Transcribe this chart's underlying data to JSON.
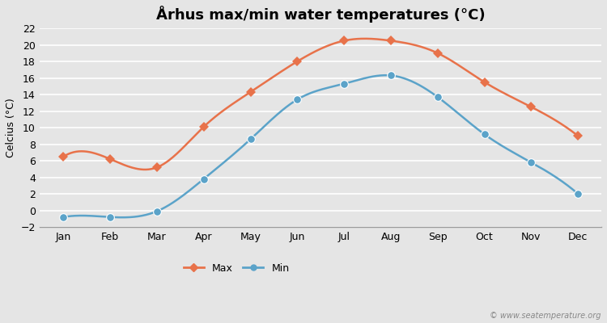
{
  "months": [
    "Jan",
    "Feb",
    "Mar",
    "Apr",
    "May",
    "Jun",
    "Jul",
    "Aug",
    "Sep",
    "Oct",
    "Nov",
    "Dec"
  ],
  "max_temps": [
    6.5,
    6.2,
    5.2,
    10.1,
    14.3,
    18.0,
    20.5,
    20.5,
    19.0,
    15.5,
    12.5,
    9.0
  ],
  "min_temps": [
    -0.8,
    -0.8,
    -0.1,
    3.8,
    8.6,
    13.4,
    15.3,
    16.3,
    13.7,
    9.2,
    5.8,
    2.0
  ],
  "max_color": "#e8724a",
  "min_color": "#5ba3c9",
  "title": "Århus max/min water temperatures (°C)",
  "ylabel": "Celcius (°C)",
  "ylim": [
    -2,
    22
  ],
  "yticks": [
    -2,
    0,
    2,
    4,
    6,
    8,
    10,
    12,
    14,
    16,
    18,
    20,
    22
  ],
  "background_color": "#e5e5e5",
  "plot_bg_color": "#e5e5e5",
  "grid_color": "#ffffff",
  "watermark": "© www.seatemperature.org",
  "title_fontsize": 13,
  "label_fontsize": 9,
  "tick_fontsize": 9,
  "max_marker": "D",
  "min_marker": "o",
  "markersize_max": 6,
  "markersize_min": 7,
  "linewidth": 1.8
}
